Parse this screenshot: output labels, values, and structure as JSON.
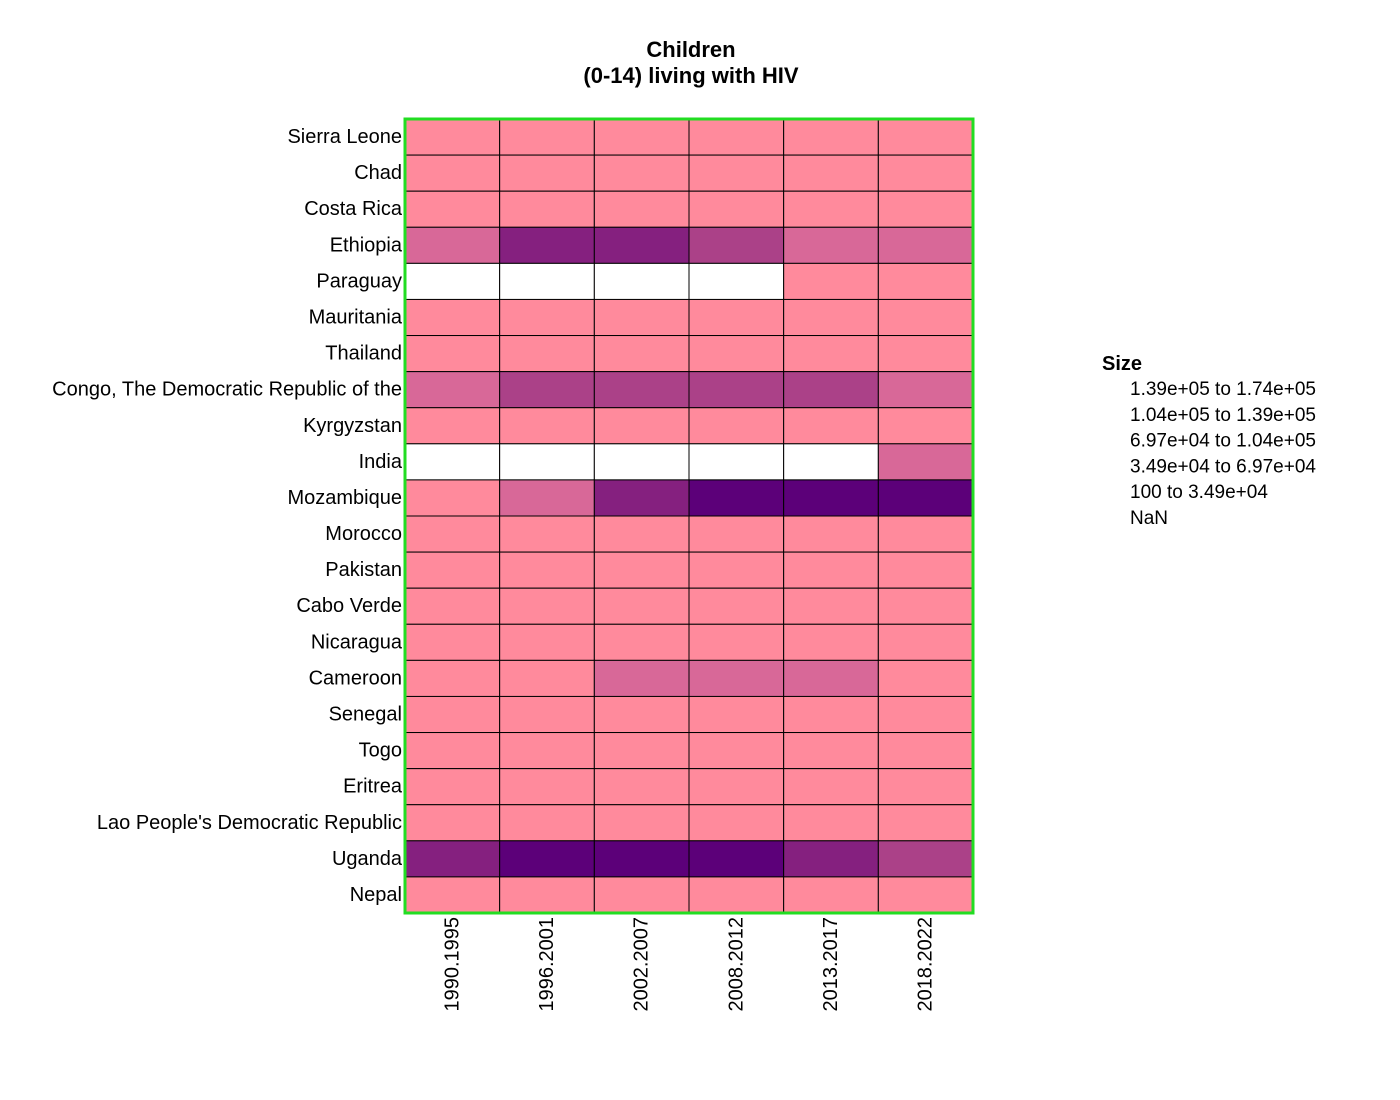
{
  "chart_data": {
    "type": "heatmap",
    "title_lines": [
      "Children",
      "(0-14) living with HIV"
    ],
    "x_categories": [
      "1990.1995",
      "1996.2001",
      "2002.2007",
      "2008.2012",
      "2013.2017",
      "2018.2022"
    ],
    "y_categories": [
      "Sierra Leone",
      "Chad",
      "Costa Rica",
      "Ethiopia",
      "Paraguay",
      "Mauritania",
      "Thailand",
      "Congo, The Democratic Republic of the",
      "Kyrgyzstan",
      "India",
      "Mozambique",
      "Morocco",
      "Pakistan",
      "Cabo Verde",
      "Nicaragua",
      "Cameroon",
      "Senegal",
      "Togo",
      "Eritrea",
      "Lao People's Democratic Republic",
      "Uganda",
      "Nepal"
    ],
    "bins": [
      {
        "lower": "100",
        "upper": "3.49e+04",
        "color": "#ff8a9c"
      },
      {
        "lower": "3.49e+04",
        "upper": "6.97e+04",
        "color": "#d86898"
      },
      {
        "lower": "6.97e+04",
        "upper": "1.04e+05",
        "color": "#ab4188"
      },
      {
        "lower": "1.04e+05",
        "upper": "1.39e+05",
        "color": "#85207f"
      },
      {
        "lower": "1.39e+05",
        "upper": "1.74e+05",
        "color": "#5c0079"
      }
    ],
    "nan_color": "#ffffff",
    "cells": [
      [
        0,
        0,
        0,
        0,
        0,
        0
      ],
      [
        0,
        0,
        0,
        0,
        0,
        0
      ],
      [
        0,
        0,
        0,
        0,
        0,
        0
      ],
      [
        1,
        3,
        3,
        2,
        1,
        1
      ],
      [
        null,
        null,
        null,
        null,
        0,
        0
      ],
      [
        0,
        0,
        0,
        0,
        0,
        0
      ],
      [
        0,
        0,
        0,
        0,
        0,
        0
      ],
      [
        1,
        2,
        2,
        2,
        2,
        1
      ],
      [
        0,
        0,
        0,
        0,
        0,
        0
      ],
      [
        null,
        null,
        null,
        null,
        null,
        1
      ],
      [
        0,
        1,
        3,
        4,
        4,
        4
      ],
      [
        0,
        0,
        0,
        0,
        0,
        0
      ],
      [
        0,
        0,
        0,
        0,
        0,
        0
      ],
      [
        0,
        0,
        0,
        0,
        0,
        0
      ],
      [
        0,
        0,
        0,
        0,
        0,
        0
      ],
      [
        0,
        0,
        1,
        1,
        1,
        0
      ],
      [
        0,
        0,
        0,
        0,
        0,
        0
      ],
      [
        0,
        0,
        0,
        0,
        0,
        0
      ],
      [
        0,
        0,
        0,
        0,
        0,
        0
      ],
      [
        0,
        0,
        0,
        0,
        0,
        0
      ],
      [
        3,
        4,
        4,
        4,
        3,
        2
      ],
      [
        0,
        0,
        0,
        0,
        0,
        0
      ]
    ],
    "border_color": "#22dd22",
    "legend": {
      "title": "Size",
      "position": "right",
      "items": [
        "1.39e+05  to  1.74e+05",
        "1.04e+05  to  1.39e+05",
        "6.97e+04  to  1.04e+05",
        "3.49e+04  to  6.97e+04",
        "100  to  3.49e+04",
        "NaN"
      ]
    }
  }
}
